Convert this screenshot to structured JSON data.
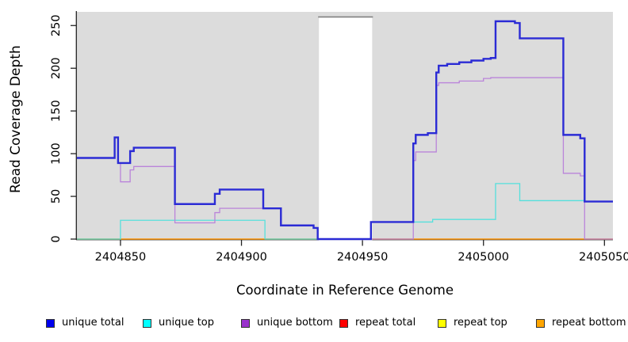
{
  "figure": {
    "xlabel": "Coordinate in Reference Genome",
    "ylabel": "Read Coverage Depth",
    "background_color": "#FFFFFF",
    "plot_background_color": "#DCDCDC",
    "axis_color": "#222222",
    "tick_label_color": "#000000"
  },
  "chart_data": {
    "type": "line",
    "subtype": "step-after-coverage-plot",
    "title": "",
    "xlabel": "Coordinate in Reference Genome",
    "ylabel": "Read Coverage Depth",
    "xlim": [
      2404832,
      2405053.5
    ],
    "ylim": [
      0,
      266
    ],
    "x_ticks": [
      2404850,
      2404900,
      2404950,
      2405000,
      2405050
    ],
    "y_ticks": [
      0,
      50,
      100,
      150,
      200,
      250
    ],
    "grid": false,
    "legend_position": "bottom",
    "masked_region": {
      "x_start": 2404932,
      "x_end": 2404954,
      "top_value": 260,
      "fill": "#FFFFFF",
      "border_top_color": "#808080"
    },
    "series": [
      {
        "name": "repeat total",
        "color": "#DD0000",
        "legend_color": "#FF0000",
        "width": 1.3,
        "z": 1,
        "points": [
          [
            2404832,
            0
          ]
        ]
      },
      {
        "name": "repeat top",
        "color": "#FFFF00",
        "legend_color": "#FFFF00",
        "width": 1.3,
        "z": 1,
        "points": [
          [
            2404832,
            0
          ]
        ]
      },
      {
        "name": "repeat bottom",
        "color": "#FF9912",
        "legend_color": "#FFA500",
        "width": 1.3,
        "z": 1,
        "points": [
          [
            2404832,
            0
          ]
        ]
      },
      {
        "name": "unique top",
        "color": "#55E0DC",
        "legend_color": "#00FFFF",
        "width": 1.3,
        "z": 2,
        "points": [
          [
            2404832,
            0
          ],
          [
            2404850,
            22
          ],
          [
            2404909.7,
            0
          ],
          [
            2404953.5,
            20
          ],
          [
            2404979,
            23
          ],
          [
            2405005,
            65
          ],
          [
            2405015,
            45
          ],
          [
            2405041.8,
            44
          ]
        ]
      },
      {
        "name": "unique bottom",
        "color": "#BA84DA",
        "legend_color": "#9932CC",
        "width": 1.3,
        "z": 2,
        "points": [
          [
            2404832,
            95
          ],
          [
            2404847.6,
            119
          ],
          [
            2404849,
            89
          ],
          [
            2404850,
            67
          ],
          [
            2404854,
            81
          ],
          [
            2404855.5,
            85
          ],
          [
            2404872.5,
            19
          ],
          [
            2404889,
            31
          ],
          [
            2404891,
            36
          ],
          [
            2404916.3,
            16
          ],
          [
            2404929.8,
            13
          ],
          [
            2404931.5,
            0
          ],
          [
            2404971,
            92
          ],
          [
            2404972,
            102
          ],
          [
            2404980.5,
            180
          ],
          [
            2404981.5,
            183
          ],
          [
            2404990,
            185
          ],
          [
            2405000,
            188
          ],
          [
            2405003,
            189
          ],
          [
            2405033,
            77
          ],
          [
            2405040,
            74
          ],
          [
            2405041.8,
            0
          ]
        ]
      },
      {
        "name": "unique total",
        "color": "#2B2BD5",
        "legend_color": "#0000EE",
        "width": 2.4,
        "z": 2,
        "points": [
          [
            2404832,
            95
          ],
          [
            2404847.6,
            119
          ],
          [
            2404849,
            89
          ],
          [
            2404854,
            103
          ],
          [
            2404855.5,
            107
          ],
          [
            2404872.5,
            41
          ],
          [
            2404889,
            53
          ],
          [
            2404891,
            58
          ],
          [
            2404909,
            36
          ],
          [
            2404916.3,
            16
          ],
          [
            2404929.8,
            13
          ],
          [
            2404931.5,
            0
          ],
          [
            2404953.5,
            20
          ],
          [
            2404971,
            112
          ],
          [
            2404972,
            122
          ],
          [
            2404977,
            124
          ],
          [
            2404980.5,
            195
          ],
          [
            2404981.5,
            203
          ],
          [
            2404985,
            205
          ],
          [
            2404990,
            207
          ],
          [
            2404995,
            209
          ],
          [
            2405000,
            211
          ],
          [
            2405003,
            212
          ],
          [
            2405005,
            255
          ],
          [
            2405013,
            253
          ],
          [
            2405015,
            235
          ],
          [
            2405033,
            122
          ],
          [
            2405040,
            118
          ],
          [
            2405041.8,
            44
          ]
        ]
      }
    ],
    "legend": {
      "order": [
        "unique total",
        "unique top",
        "unique bottom",
        "repeat total",
        "repeat top",
        "repeat bottom"
      ],
      "x_positions": [
        58,
        180,
        304,
        428,
        552,
        676
      ]
    }
  }
}
